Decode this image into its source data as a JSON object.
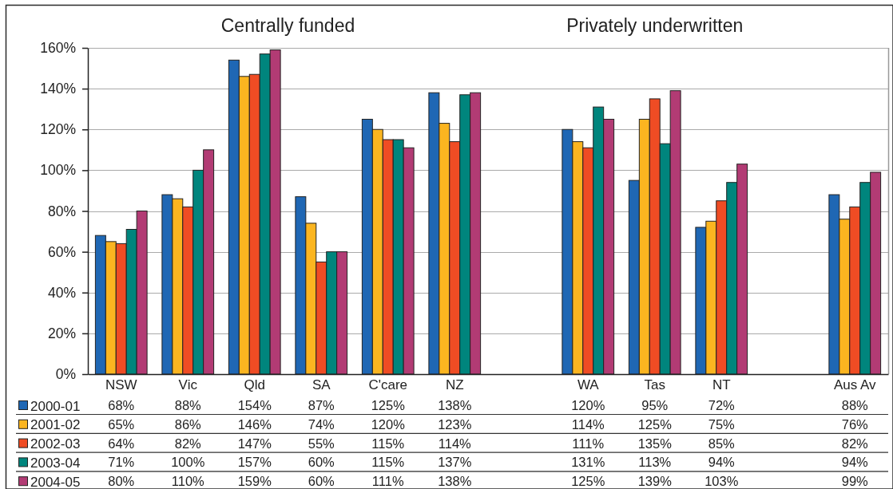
{
  "chart_data": {
    "type": "bar",
    "categories": [
      "NSW",
      "Vic",
      "Qld",
      "SA",
      "C'care",
      "NZ",
      null,
      "WA",
      "Tas",
      "NT",
      null,
      "Aus Av"
    ],
    "series": [
      {
        "name": "2000-01",
        "color": "#1f67b4",
        "values": [
          68,
          88,
          154,
          87,
          125,
          138,
          null,
          120,
          95,
          72,
          null,
          88
        ],
        "value_labels": [
          "68%",
          "88%",
          "154%",
          "87%",
          "125%",
          "138%",
          null,
          "120%",
          "95%",
          "72%",
          null,
          "88%"
        ]
      },
      {
        "name": "2001-02",
        "color": "#fbb520",
        "values": [
          65,
          86,
          146,
          74,
          120,
          123,
          null,
          114,
          125,
          75,
          null,
          76
        ],
        "value_labels": [
          "65%",
          "86%",
          "146%",
          "74%",
          "120%",
          "123%",
          null,
          "114%",
          "125%",
          "75%",
          null,
          "76%"
        ]
      },
      {
        "name": "2002-03",
        "color": "#ef4c24",
        "values": [
          64,
          82,
          147,
          55,
          115,
          114,
          null,
          111,
          135,
          85,
          null,
          82
        ],
        "value_labels": [
          "64%",
          "82%",
          "147%",
          "55%",
          "115%",
          "114%",
          null,
          "111%",
          "135%",
          "85%",
          null,
          "82%"
        ]
      },
      {
        "name": "2003-04",
        "color": "#00857d",
        "values": [
          71,
          100,
          157,
          60,
          115,
          137,
          null,
          131,
          113,
          94,
          null,
          94
        ],
        "value_labels": [
          "71%",
          "100%",
          "157%",
          "60%",
          "115%",
          "137%",
          null,
          "131%",
          "113%",
          "94%",
          null,
          "94%"
        ]
      },
      {
        "name": "2004-05",
        "color": "#b23b74",
        "values": [
          80,
          110,
          159,
          60,
          111,
          138,
          null,
          125,
          139,
          103,
          null,
          99
        ],
        "value_labels": [
          "80%",
          "110%",
          "159%",
          "60%",
          "111%",
          "138%",
          null,
          "125%",
          "139%",
          "103%",
          null,
          "99%"
        ]
      }
    ],
    "ylim": [
      0,
      160
    ],
    "yticks": [
      {
        "value": 0,
        "label": "0%"
      },
      {
        "value": 20,
        "label": "20%"
      },
      {
        "value": 40,
        "label": "40%"
      },
      {
        "value": 60,
        "label": "60%"
      },
      {
        "value": 80,
        "label": "80%"
      },
      {
        "value": 100,
        "label": "100%"
      },
      {
        "value": 120,
        "label": "120%"
      },
      {
        "value": 140,
        "label": "140%"
      },
      {
        "value": 160,
        "label": "160%"
      }
    ],
    "grid": "y",
    "legend": "bottom",
    "annotations": [
      "Centrally funded",
      "Privately underwritten"
    ]
  }
}
